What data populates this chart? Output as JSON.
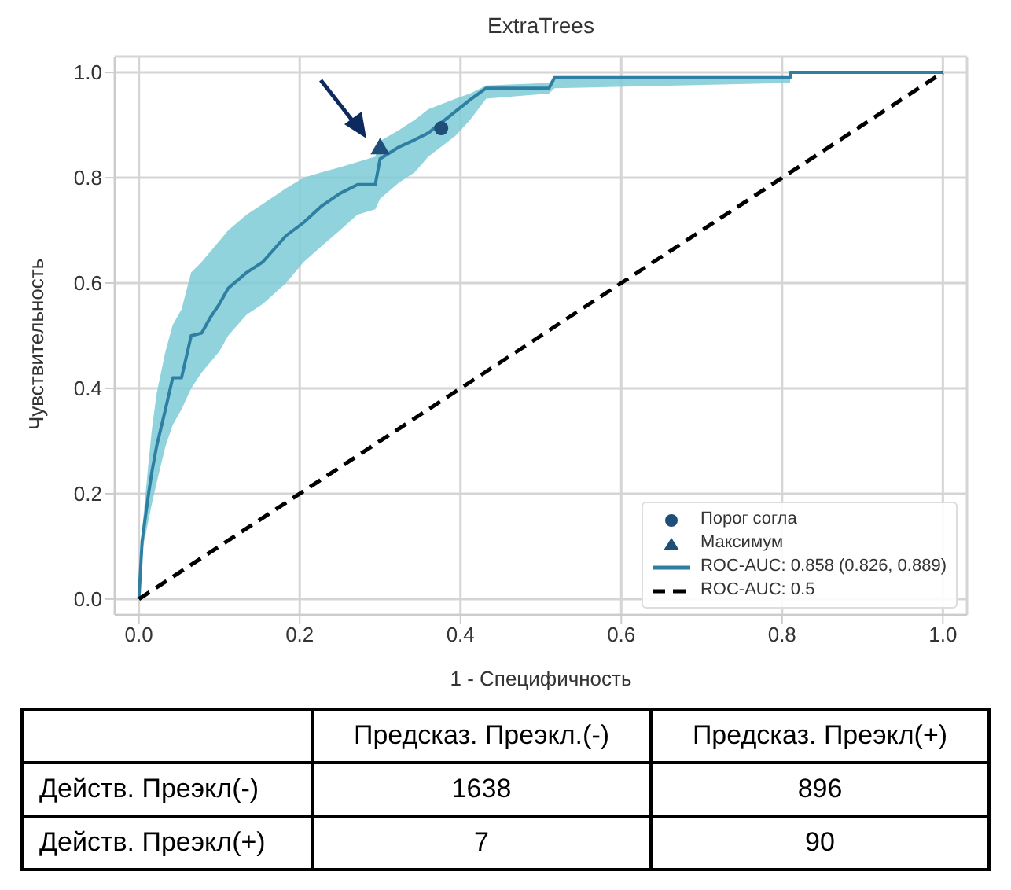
{
  "chart_data": {
    "type": "line",
    "title": "ExtraTrees",
    "xlabel": "1 - Специфичность",
    "ylabel": "Чувствительность",
    "xlim": [
      -0.03,
      1.03
    ],
    "ylim": [
      -0.03,
      1.03
    ],
    "xticks": [
      {
        "value": 0,
        "label": "0.0"
      },
      0.2,
      0.4,
      0.6,
      0.8,
      {
        "value": 1,
        "label": "1.0"
      }
    ],
    "yticks": [
      {
        "value": 0,
        "label": "0.0"
      },
      0.2,
      0.4,
      0.6,
      0.8,
      {
        "value": 1,
        "label": "1.0"
      }
    ],
    "grid": true,
    "legend": "bottom right",
    "series": [
      {
        "name": "Порог согла",
        "type": "scatter",
        "marker": "circle",
        "color": "#1f4e79",
        "x": [
          0.376
        ],
        "values": [
          0.894
        ]
      },
      {
        "name": "Максимум",
        "type": "scatter",
        "marker": "triangle",
        "color": "#1f4e79",
        "x": [
          0.3
        ],
        "values": [
          0.855
        ]
      },
      {
        "name": "ROC-AUC: 0.858 (0.826, 0.889)",
        "color": "#2f7fa3",
        "line_style": "solid",
        "x": [
          0,
          0.004,
          0.012,
          0.016,
          0.022,
          0.033,
          0.042,
          0.053,
          0.065,
          0.078,
          0.089,
          0.1,
          0.111,
          0.134,
          0.154,
          0.183,
          0.205,
          0.227,
          0.25,
          0.272,
          0.294,
          0.3,
          0.323,
          0.343,
          0.36,
          0.394,
          0.412,
          0.432,
          0.51,
          0.517,
          0.81,
          0.81,
          1.0
        ],
        "values": [
          0,
          0.11,
          0.2,
          0.24,
          0.29,
          0.36,
          0.42,
          0.42,
          0.5,
          0.505,
          0.535,
          0.56,
          0.59,
          0.62,
          0.64,
          0.69,
          0.715,
          0.746,
          0.77,
          0.787,
          0.787,
          0.836,
          0.858,
          0.872,
          0.885,
          0.926,
          0.948,
          0.97,
          0.97,
          0.99,
          0.99,
          1.0,
          1.0
        ],
        "lower": [
          0,
          0.09,
          0.15,
          0.18,
          0.22,
          0.29,
          0.33,
          0.36,
          0.4,
          0.43,
          0.45,
          0.47,
          0.5,
          0.54,
          0.56,
          0.6,
          0.64,
          0.67,
          0.7,
          0.73,
          0.74,
          0.76,
          0.79,
          0.81,
          0.84,
          0.88,
          0.91,
          0.95,
          0.96,
          0.97,
          0.98,
          1.0,
          1.0
        ],
        "upper": [
          0,
          0.13,
          0.26,
          0.32,
          0.39,
          0.47,
          0.52,
          0.55,
          0.62,
          0.64,
          0.66,
          0.68,
          0.7,
          0.73,
          0.75,
          0.78,
          0.8,
          0.81,
          0.82,
          0.83,
          0.84,
          0.87,
          0.89,
          0.91,
          0.93,
          0.95,
          0.96,
          0.975,
          0.98,
          0.99,
          0.99,
          1.0,
          1.0
        ]
      },
      {
        "name": "ROC-AUC: 0.5",
        "color": "#000000",
        "line_style": "dashed",
        "x": [
          0,
          1
        ],
        "values": [
          0,
          1
        ]
      }
    ],
    "annotations": [
      "Предсказ. Преэкл.(-)",
      "Предсказ. Преэкл(+)",
      "Действ. Преэкл(-)",
      "1638",
      "896",
      "Действ. Преэкл(+)",
      "7",
      "90"
    ]
  }
}
